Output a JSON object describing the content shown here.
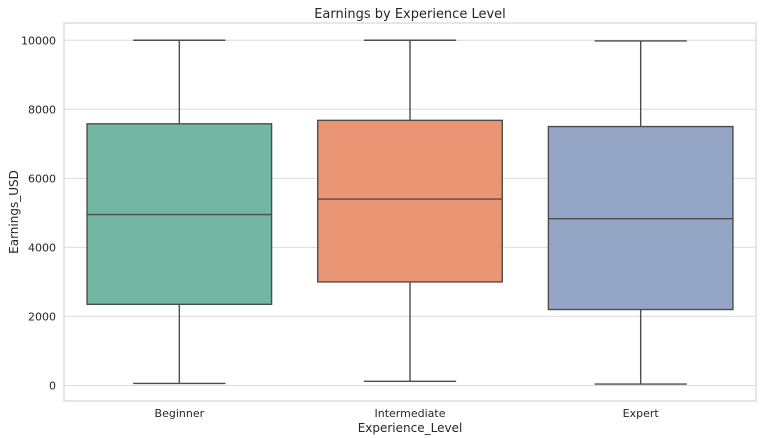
{
  "chart_data": {
    "type": "box",
    "title": "Earnings by Experience Level",
    "xlabel": "Experience_Level",
    "ylabel": "Earnings_USD",
    "ylim": [
      -450,
      10500
    ],
    "yticks": [
      0,
      2000,
      4000,
      6000,
      8000,
      10000
    ],
    "grid": true,
    "categories": [
      "Beginner",
      "Intermediate",
      "Expert"
    ],
    "boxes": [
      {
        "category": "Beginner",
        "min": 60,
        "q1": 2350,
        "median": 4950,
        "q3": 7580,
        "max": 10000,
        "color": "#73b6a1"
      },
      {
        "category": "Intermediate",
        "min": 120,
        "q1": 3000,
        "median": 5400,
        "q3": 7680,
        "max": 10000,
        "color": "#ea9674"
      },
      {
        "category": "Expert",
        "min": 40,
        "q1": 2200,
        "median": 4830,
        "q3": 7500,
        "max": 9980,
        "color": "#95a5c6"
      }
    ]
  }
}
